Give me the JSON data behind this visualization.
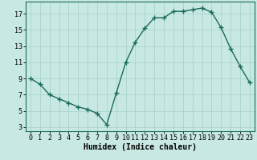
{
  "x": [
    0,
    1,
    2,
    3,
    4,
    5,
    6,
    7,
    8,
    9,
    10,
    11,
    12,
    13,
    14,
    15,
    16,
    17,
    18,
    19,
    20,
    21,
    22,
    23
  ],
  "y": [
    9,
    8.3,
    7,
    6.5,
    6,
    5.5,
    5.2,
    4.7,
    3.3,
    7.2,
    11,
    13.5,
    15.2,
    16.5,
    16.5,
    17.3,
    17.3,
    17.5,
    17.7,
    17.2,
    15.3,
    12.7,
    10.5,
    8.5
  ],
  "bg_color": "#c8e8e4",
  "line_color": "#1a6b5a",
  "marker": "+",
  "marker_size": 4,
  "marker_linewidth": 1.0,
  "line_width": 1.0,
  "xlabel": "Humidex (Indice chaleur)",
  "xlabel_fontsize": 7,
  "ylabel_ticks": [
    3,
    5,
    7,
    9,
    11,
    13,
    15,
    17
  ],
  "xlim": [
    -0.5,
    23.5
  ],
  "ylim": [
    2.5,
    18.5
  ],
  "grid_color": "#a8d4cc",
  "tick_fontsize": 6,
  "xtick_labels": [
    "0",
    "1",
    "2",
    "3",
    "4",
    "5",
    "6",
    "7",
    "8",
    "9",
    "10",
    "11",
    "12",
    "13",
    "14",
    "15",
    "16",
    "17",
    "18",
    "19",
    "20",
    "21",
    "22",
    "23"
  ]
}
